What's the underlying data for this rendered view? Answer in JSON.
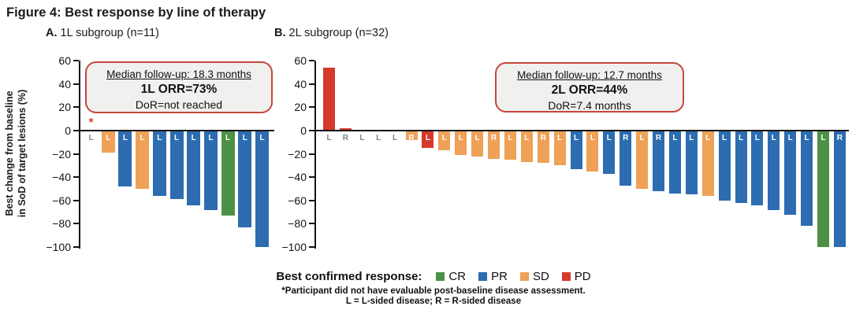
{
  "title": "Figure 4: Best response by line of therapy",
  "ylabel_line1": "Best change from baseline",
  "ylabel_line2": "in SoD of target lesions (%)",
  "legend": {
    "label": "Best confirmed response:",
    "items": [
      {
        "key": "CR",
        "label": "CR",
        "color": "#4d9147"
      },
      {
        "key": "PR",
        "label": "PR",
        "color": "#2d6cb0"
      },
      {
        "key": "SD",
        "label": "SD",
        "color": "#eea157"
      },
      {
        "key": "PD",
        "label": "PD",
        "color": "#d6392b"
      }
    ]
  },
  "footnote1": "*Participant did not have evaluable post-baseline disease assessment.",
  "footnote2": "L = L-sided disease; R = R-sided disease",
  "colors": {
    "CR": "#4d9147",
    "PR": "#2d6cb0",
    "SD": "#eea157",
    "PD": "#d6392b",
    "NE": null,
    "asterisk": "#d6392b",
    "no_bar_label": "#7d838a",
    "on_bar_label": "#ffffff",
    "annotation_border": "#c4473c",
    "annotation_bg": "#f0f0ef"
  },
  "chart_data": [
    {
      "type": "bar",
      "subtype": "waterfall",
      "panel_label": "A.",
      "subtitle": "1L subgroup (n=11)",
      "ylabel": "Best change from baseline in SoD of target lesions (%)",
      "ylim": [
        -100,
        60
      ],
      "yticks": [
        60,
        40,
        20,
        0,
        -20,
        -40,
        -60,
        -80,
        -100
      ],
      "grid": false,
      "annotation": {
        "line1": "Median follow-up: 18.3 months",
        "line2": "1L ORR=73%",
        "line3": "DoR=not reached"
      },
      "bars": [
        {
          "value": 0,
          "response": "NE",
          "side": "L",
          "asterisk": true
        },
        {
          "value": -19,
          "response": "SD",
          "side": "L"
        },
        {
          "value": -48,
          "response": "PR",
          "side": "L"
        },
        {
          "value": -50,
          "response": "SD",
          "side": "L"
        },
        {
          "value": -56,
          "response": "PR",
          "side": "L"
        },
        {
          "value": -59,
          "response": "PR",
          "side": "L"
        },
        {
          "value": -64,
          "response": "PR",
          "side": "L"
        },
        {
          "value": -68,
          "response": "PR",
          "side": "L"
        },
        {
          "value": -73,
          "response": "CR",
          "side": "L"
        },
        {
          "value": -83,
          "response": "PR",
          "side": "L"
        },
        {
          "value": -100,
          "response": "PR",
          "side": "L"
        }
      ]
    },
    {
      "type": "bar",
      "subtype": "waterfall",
      "panel_label": "B.",
      "subtitle": "2L subgroup (n=32)",
      "ylabel": "Best change from baseline in SoD of target lesions (%)",
      "ylim": [
        -100,
        60
      ],
      "yticks": [
        60,
        40,
        20,
        0,
        -20,
        -40,
        -60,
        -80,
        -100
      ],
      "grid": false,
      "annotation": {
        "line1": "Median follow-up: 12.7 months",
        "line2": "2L ORR=44%",
        "line3": "DoR=7.4 months"
      },
      "bars": [
        {
          "value": 54,
          "response": "PD",
          "side": "L"
        },
        {
          "value": 2,
          "response": "PD",
          "side": "R"
        },
        {
          "value": 0,
          "response": "NE",
          "side": "L"
        },
        {
          "value": 0,
          "response": "NE",
          "side": "L"
        },
        {
          "value": 0,
          "response": "NE",
          "side": "L"
        },
        {
          "value": -8,
          "response": "SD",
          "side": "R"
        },
        {
          "value": -15,
          "response": "PD",
          "side": "L"
        },
        {
          "value": -17,
          "response": "SD",
          "side": "L"
        },
        {
          "value": -21,
          "response": "SD",
          "side": "L"
        },
        {
          "value": -22,
          "response": "SD",
          "side": "L"
        },
        {
          "value": -24,
          "response": "SD",
          "side": "R"
        },
        {
          "value": -25,
          "response": "SD",
          "side": "L"
        },
        {
          "value": -27,
          "response": "SD",
          "side": "L"
        },
        {
          "value": -28,
          "response": "SD",
          "side": "R"
        },
        {
          "value": -30,
          "response": "SD",
          "side": "L"
        },
        {
          "value": -33,
          "response": "PR",
          "side": "L"
        },
        {
          "value": -35,
          "response": "SD",
          "side": "L"
        },
        {
          "value": -37,
          "response": "PR",
          "side": "L"
        },
        {
          "value": -47,
          "response": "PR",
          "side": "R"
        },
        {
          "value": -50,
          "response": "SD",
          "side": "L"
        },
        {
          "value": -52,
          "response": "PR",
          "side": "R"
        },
        {
          "value": -54,
          "response": "PR",
          "side": "L"
        },
        {
          "value": -55,
          "response": "PR",
          "side": "L"
        },
        {
          "value": -56,
          "response": "SD",
          "side": "L"
        },
        {
          "value": -60,
          "response": "PR",
          "side": "L"
        },
        {
          "value": -62,
          "response": "PR",
          "side": "L"
        },
        {
          "value": -64,
          "response": "PR",
          "side": "L"
        },
        {
          "value": -68,
          "response": "PR",
          "side": "L"
        },
        {
          "value": -72,
          "response": "PR",
          "side": "L"
        },
        {
          "value": -82,
          "response": "PR",
          "side": "L"
        },
        {
          "value": -100,
          "response": "CR",
          "side": "L"
        },
        {
          "value": -100,
          "response": "PR",
          "side": "R"
        }
      ]
    }
  ]
}
